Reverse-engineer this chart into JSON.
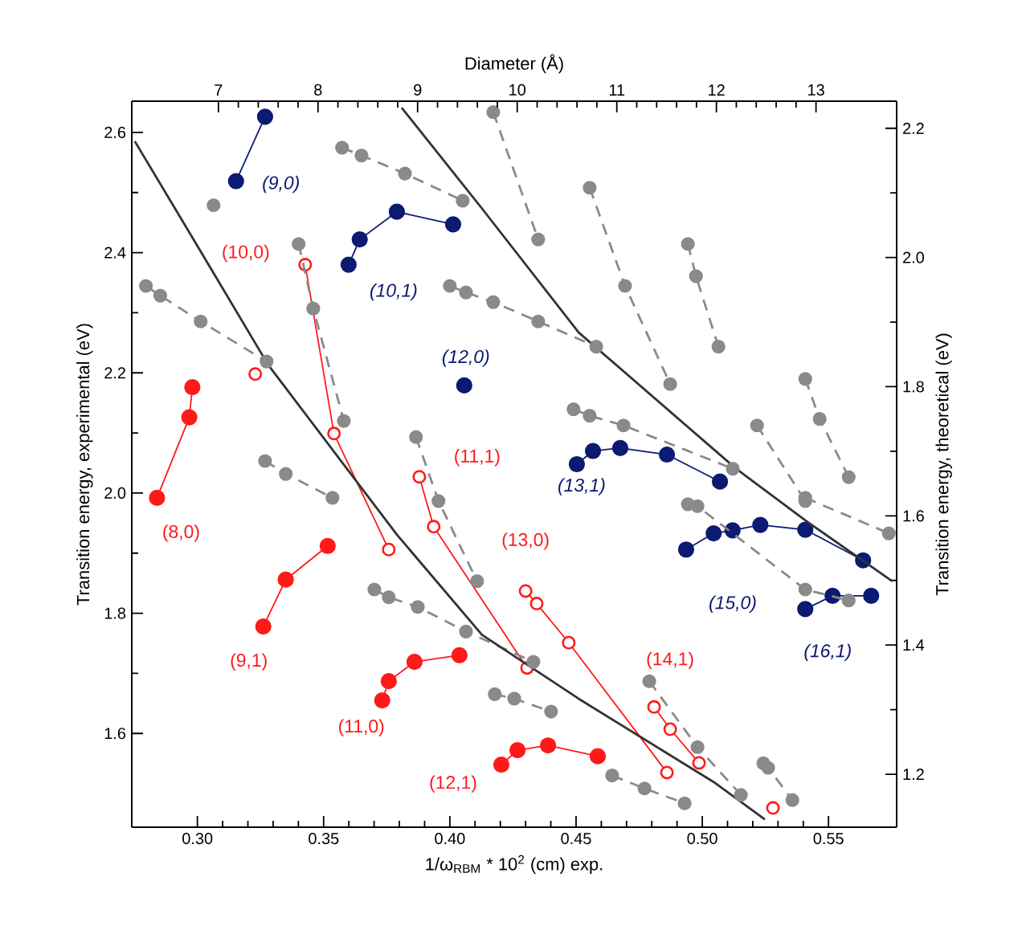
{
  "chart_data": {
    "type": "line",
    "xlabel": "1/ω$_{RBM}$ * 10$^{2}$ (cm) exp.",
    "ylabel": "Transition energy, experimental (eV)",
    "y2label": "Transition energy, theoretical (eV)",
    "x2label": "Diameter (Å)",
    "xlim": [
      0.274,
      0.577
    ],
    "ylim": [
      1.444,
      2.652
    ],
    "y2lim": [
      1.118,
      2.242
    ],
    "x2lim": [
      6.13,
      13.81
    ],
    "xticks": [
      {
        "value": 0.3,
        "label": "0.30"
      },
      {
        "value": 0.35,
        "label": "0.35"
      },
      {
        "value": 0.4,
        "label": "0.40"
      },
      {
        "value": 0.45,
        "label": "0.45"
      },
      {
        "value": 0.5,
        "label": "0.50"
      },
      {
        "value": 0.55,
        "label": "0.55"
      }
    ],
    "yticks": [
      1.6,
      1.8,
      {
        "value": 2,
        "label": "2.0"
      },
      2.2,
      2.4,
      2.6
    ],
    "y2ticks": [
      1.2,
      1.4,
      1.6,
      1.8,
      {
        "value": 2,
        "label": "2.0"
      },
      2.2
    ],
    "x2ticks": [
      7,
      8,
      9,
      10,
      11,
      12,
      13
    ],
    "series": [
      {
        "axis": "y2",
        "color": "#8a8a8a",
        "marker": "circle",
        "line_style": "dashed",
        "x": [
          0.3064
        ],
        "values": [
          2.081
        ]
      },
      {
        "axis": "y2",
        "color": "#8a8a8a",
        "marker": "circle",
        "line_style": "dashed",
        "x": [
          0.2796,
          0.2853,
          0.3013,
          0.3274
        ],
        "values": [
          1.956,
          1.941,
          1.901,
          1.839
        ]
      },
      {
        "axis": "y2",
        "color": "#8a8a8a",
        "marker": "circle",
        "line_style": "dashed",
        "x": [
          0.3401,
          0.3459,
          0.358
        ],
        "values": [
          2.021,
          1.921,
          1.747
        ]
      },
      {
        "axis": "y2",
        "color": "#8a8a8a",
        "marker": "circle",
        "line_style": "dashed",
        "x": [
          0.3268,
          0.335,
          0.3535
        ],
        "values": [
          1.685,
          1.665,
          1.628
        ]
      },
      {
        "axis": "y2",
        "color": "#8a8a8a",
        "marker": "circle",
        "line_style": "dashed",
        "x": [
          0.3701,
          0.3758,
          0.3873,
          0.4064,
          0.4331
        ],
        "values": [
          1.486,
          1.474,
          1.459,
          1.421,
          1.374
        ]
      },
      {
        "axis": "y2",
        "color": "#8a8a8a",
        "marker": "circle",
        "line_style": "dashed",
        "x": [
          0.3866,
          0.3955,
          0.4108
        ],
        "values": [
          1.722,
          1.623,
          1.499
        ]
      },
      {
        "axis": "y2",
        "color": "#8a8a8a",
        "marker": "circle",
        "line_style": "dashed",
        "x": [
          0.3573,
          0.365,
          0.3822,
          0.4051
        ],
        "values": [
          2.17,
          2.158,
          2.13,
          2.088
        ]
      },
      {
        "axis": "y2",
        "color": "#8a8a8a",
        "marker": "circle",
        "line_style": "dashed",
        "x": [
          0.4,
          0.4064,
          0.4172,
          0.435,
          0.458
        ],
        "values": [
          1.956,
          1.946,
          1.931,
          1.901,
          1.862
        ]
      },
      {
        "axis": "y2",
        "color": "#8a8a8a",
        "marker": "circle",
        "line_style": "dashed",
        "x": [
          0.4172,
          0.435
        ],
        "values": [
          2.225,
          2.028
        ]
      },
      {
        "axis": "y2",
        "color": "#8a8a8a",
        "marker": "circle",
        "line_style": "dashed",
        "x": [
          0.449,
          0.4554,
          0.4688,
          0.5121
        ],
        "values": [
          1.765,
          1.755,
          1.74,
          1.673
        ]
      },
      {
        "axis": "y2",
        "color": "#8a8a8a",
        "marker": "circle",
        "line_style": "dashed",
        "x": [
          0.4554,
          0.4694,
          0.4873
        ],
        "values": [
          2.108,
          1.956,
          1.804
        ]
      },
      {
        "axis": "y2",
        "color": "#8a8a8a",
        "marker": "circle",
        "line_style": "dashed",
        "x": [
          0.4943,
          0.4975,
          0.5064
        ],
        "values": [
          2.021,
          1.971,
          1.862
        ]
      },
      {
        "axis": "y2",
        "color": "#8a8a8a",
        "marker": "circle",
        "line_style": "dashed",
        "x": [
          0.5408,
          0.5465,
          0.558
        ],
        "values": [
          1.812,
          1.75,
          1.66
        ]
      },
      {
        "axis": "y2",
        "color": "#8a8a8a",
        "marker": "circle",
        "line_style": "dashed",
        "x": [
          0.4178,
          0.4255,
          0.4401
        ],
        "values": [
          1.324,
          1.317,
          1.297
        ]
      },
      {
        "axis": "y2",
        "color": "#8a8a8a",
        "marker": "circle",
        "line_style": "dashed",
        "x": [
          0.4943,
          0.4981,
          0.5408,
          0.558
        ],
        "values": [
          1.618,
          1.615,
          1.486,
          1.469
        ]
      },
      {
        "axis": "y2",
        "color": "#8a8a8a",
        "marker": "circle",
        "line_style": "dashed",
        "x": [
          0.5408,
          0.5739
        ],
        "values": [
          1.628,
          1.573
        ]
      },
      {
        "axis": "y2",
        "color": "#8a8a8a",
        "marker": "circle",
        "line_style": "dashed",
        "x": [
          0.4643,
          0.4771,
          0.493
        ],
        "values": [
          1.198,
          1.178,
          1.155
        ]
      },
      {
        "axis": "y2",
        "color": "#8a8a8a",
        "marker": "circle",
        "line_style": "dashed",
        "x": [
          0.479,
          0.4981,
          0.5153
        ],
        "values": [
          1.344,
          1.242,
          1.168
        ]
      },
      {
        "axis": "y2",
        "color": "#8a8a8a",
        "marker": "circle",
        "line_style": "dashed",
        "x": [
          0.5242,
          0.5261,
          0.5357
        ],
        "values": [
          1.217,
          1.21,
          1.16
        ]
      },
      {
        "axis": "y2",
        "color": "#8a8a8a",
        "marker": "circle",
        "line_style": "dashed",
        "x": [
          0.5217,
          0.5408
        ],
        "values": [
          1.74,
          1.623
        ]
      },
      {
        "axis": "y2",
        "color": "#333333",
        "marker": "none",
        "line_style": "solid",
        "x": [
          0.2752,
          0.3064,
          0.328,
          0.379,
          0.4127,
          0.451,
          0.5045,
          0.5248
        ],
        "values": [
          2.18,
          1.976,
          1.834,
          1.571,
          1.416,
          1.317,
          1.188,
          1.13
        ]
      },
      {
        "axis": "y2",
        "color": "#333333",
        "marker": "none",
        "line_style": "solid",
        "x": [
          0.3809,
          0.4127,
          0.451,
          0.5134,
          0.5408,
          0.5752
        ],
        "values": [
          2.232,
          2.076,
          1.884,
          1.673,
          1.593,
          1.499
        ]
      },
      {
        "name": "(9,0)",
        "color": "#0c1a72",
        "marker": "circle",
        "x": [
          0.3153,
          0.3268
        ],
        "values": [
          2.519,
          2.626
        ]
      },
      {
        "name": "(10,1)",
        "color": "#0c1a72",
        "marker": "circle",
        "x": [
          0.3599,
          0.3643,
          0.379,
          0.4013
        ],
        "values": [
          2.38,
          2.422,
          2.468,
          2.447
        ]
      },
      {
        "name": "(12,0)",
        "color": "#0c1a72",
        "marker": "circle",
        "x": [
          0.4057
        ],
        "values": [
          2.179
        ]
      },
      {
        "name": "(13,1)",
        "color": "#0c1a72",
        "marker": "circle",
        "x": [
          0.4503,
          0.4567,
          0.4675,
          0.486,
          0.507
        ],
        "values": [
          2.048,
          2.07,
          2.075,
          2.064,
          2.019
        ]
      },
      {
        "name": "(15,0)",
        "color": "#0c1a72",
        "marker": "circle",
        "x": [
          0.4936,
          0.5045,
          0.512,
          0.523,
          0.5408,
          0.5637
        ],
        "values": [
          1.906,
          1.933,
          1.938,
          1.947,
          1.939,
          1.888
        ]
      },
      {
        "name": "(16,1)",
        "color": "#0c1a72",
        "marker": "circle",
        "x": [
          0.5408,
          0.5516,
          0.5669
        ],
        "values": [
          1.807,
          1.829,
          1.829
        ]
      },
      {
        "name": "(8,0)",
        "color": "#ff1a1a",
        "marker": "circle",
        "x": [
          0.284,
          0.2968,
          0.298
        ],
        "values": [
          1.992,
          2.126,
          2.176
        ]
      },
      {
        "name": "(9,1)",
        "color": "#ff1a1a",
        "marker": "circle",
        "x": [
          0.3261,
          0.335,
          0.3516
        ],
        "values": [
          1.778,
          1.856,
          1.912
        ]
      },
      {
        "name": "(11,0)",
        "color": "#ff1a1a",
        "marker": "circle",
        "x": [
          0.3732,
          0.3758,
          0.386,
          0.4038
        ],
        "values": [
          1.655,
          1.687,
          1.719,
          1.73
        ]
      },
      {
        "name": "(12,1)",
        "color": "#ff1a1a",
        "marker": "circle",
        "x": [
          0.4204,
          0.4268,
          0.4389,
          0.4586
        ],
        "values": [
          1.548,
          1.572,
          1.58,
          1.562
        ]
      },
      {
        "name": "(10,0)",
        "color": "#ff1a1a",
        "marker": "circle-open",
        "x": [
          0.3427,
          0.3541,
          0.3758
        ],
        "values": [
          2.38,
          2.099,
          1.906
        ]
      },
      {
        "name": "(11,1)",
        "color": "#ff1a1a",
        "marker": "circle-open",
        "x": [
          0.3879,
          0.3936,
          0.4306
        ],
        "values": [
          2.027,
          1.944,
          1.709
        ]
      },
      {
        "name": "(13,0)",
        "color": "#ff1a1a",
        "marker": "circle-open",
        "x": [
          0.43,
          0.4344,
          0.4471,
          0.486
        ],
        "values": [
          1.837,
          1.816,
          1.751,
          1.535
        ]
      },
      {
        "name": "(14,1)",
        "color": "#ff1a1a",
        "marker": "circle-open",
        "x": [
          0.4809,
          0.4873,
          0.4987
        ],
        "values": [
          1.644,
          1.607,
          1.551
        ]
      },
      {
        "type": "scatter",
        "color": "#ff1a1a",
        "marker": "circle-open",
        "x": [
          0.3229,
          0.528
        ],
        "values": [
          2.198,
          1.476
        ]
      }
    ]
  }
}
